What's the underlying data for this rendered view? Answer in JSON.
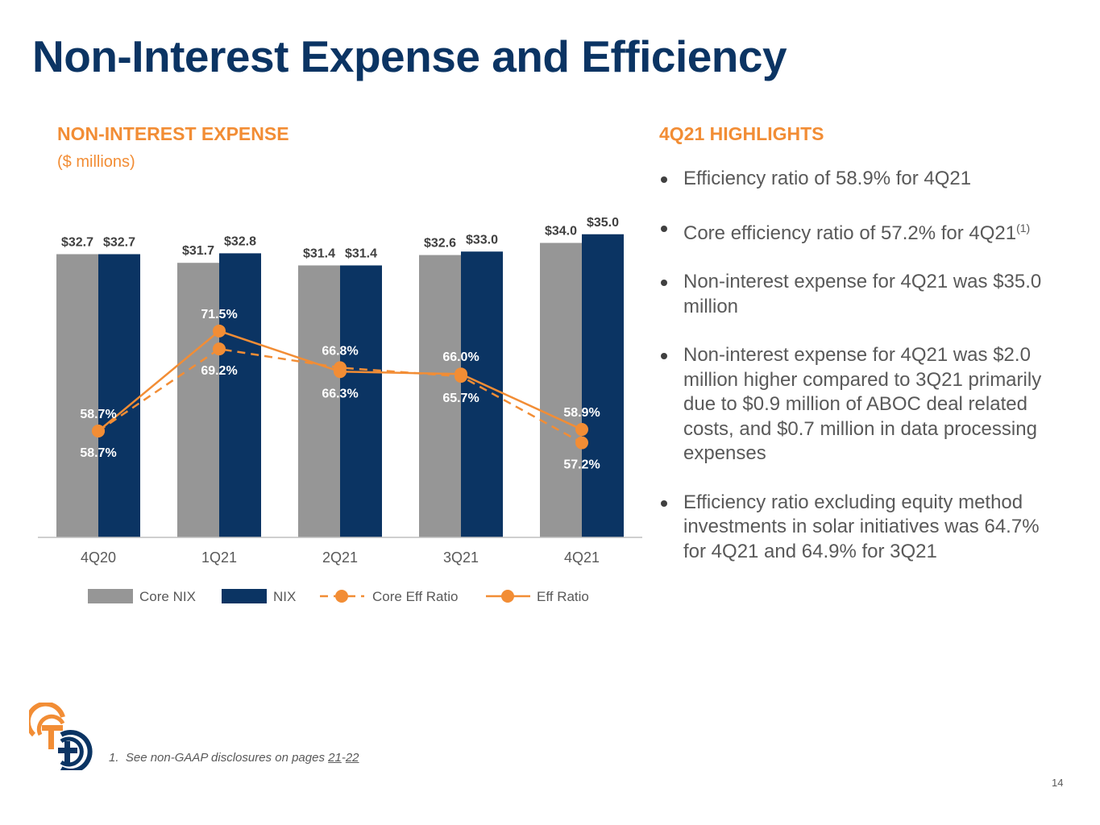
{
  "slide": {
    "title": "Non-Interest Expense and Efficiency",
    "page_number": "14"
  },
  "left_panel": {
    "heading": "NON-INTEREST EXPENSE",
    "units": "($ millions)"
  },
  "chart_data": {
    "type": "bar",
    "title": "NON-INTEREST EXPENSE",
    "subtitle": "($ millions)",
    "categories": [
      "4Q20",
      "1Q21",
      "2Q21",
      "3Q21",
      "4Q21"
    ],
    "series": [
      {
        "name": "Core NIX",
        "kind": "bar",
        "color": "#969696",
        "values": [
          32.7,
          31.7,
          31.4,
          32.6,
          34.0
        ],
        "labels": [
          "$32.7",
          "$31.7",
          "$31.4",
          "$32.6",
          "$34.0"
        ]
      },
      {
        "name": "NIX",
        "kind": "bar",
        "color": "#0b3463",
        "values": [
          32.7,
          32.8,
          31.4,
          33.0,
          35.0
        ],
        "labels": [
          "$32.7",
          "$32.8",
          "$31.4",
          "$33.0",
          "$35.0"
        ]
      },
      {
        "name": "Core Eff Ratio",
        "kind": "line",
        "dashed": true,
        "color": "#f28d35",
        "values": [
          58.7,
          69.2,
          66.8,
          65.7,
          57.2
        ],
        "labels": [
          "58.7%",
          "69.2%",
          "66.8%",
          "65.7%",
          "57.2%"
        ]
      },
      {
        "name": "Eff Ratio",
        "kind": "line",
        "dashed": false,
        "color": "#f28d35",
        "values": [
          58.7,
          71.5,
          66.3,
          66.0,
          58.9
        ],
        "labels": [
          "58.7%",
          "71.5%",
          "66.3%",
          "66.0%",
          "58.9%"
        ]
      }
    ],
    "legend": "bottom",
    "grid": false
  },
  "highlights": {
    "heading": "4Q21 HIGHLIGHTS",
    "items": [
      {
        "text": "Efficiency ratio of 58.9% for 4Q21"
      },
      {
        "text": "Core efficiency ratio of 57.2% for 4Q21",
        "sup": "(1)"
      },
      {
        "text": "Non-interest expense for 4Q21 was $35.0 million"
      },
      {
        "text": "Non-interest expense for 4Q21 was $2.0 million higher compared to 3Q21 primarily due to $0.9 million of ABOC deal related costs, and $0.7 million in data processing expenses"
      },
      {
        "text": "Efficiency ratio excluding equity method investments in solar initiatives was 64.7% for 4Q21 and 64.9% for 3Q21"
      }
    ]
  },
  "footnote": {
    "marker": "1.",
    "text": "See non-GAAP disclosures on pages",
    "page_from": "21",
    "separator": "-",
    "page_to": "22"
  }
}
